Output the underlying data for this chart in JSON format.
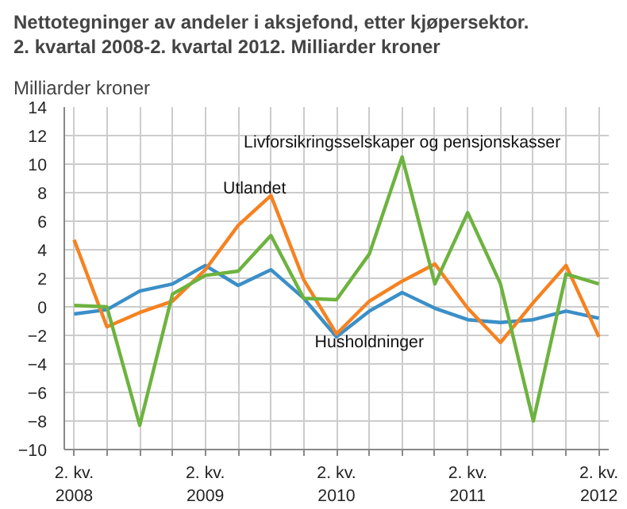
{
  "chart_data": {
    "type": "line",
    "title": "Nettotegninger av andeler i aksjefond, etter kjøpersektor.\n2. kvartal 2008-2. kvartal 2012. Milliarder kroner",
    "ylabel": "Milliarder kroner",
    "categories": [
      "2. kv. 2008",
      null,
      null,
      null,
      "2. kv. 2009",
      null,
      null,
      null,
      "2. kv. 2010",
      null,
      null,
      null,
      "2. kv. 2011",
      null,
      null,
      null,
      "2. kv. 2012"
    ],
    "series": [
      {
        "name": "Husholdninger",
        "color": "#3a8fc8",
        "values": [
          -0.5,
          -0.2,
          1.1,
          1.6,
          2.9,
          1.5,
          2.6,
          0.6,
          -2.1,
          -0.3,
          1.0,
          -0.1,
          -0.9,
          -1.1,
          -0.9,
          -0.3,
          -0.8
        ]
      },
      {
        "name": "Utlandet",
        "color": "#f58220",
        "values": [
          4.7,
          -1.4,
          -0.4,
          0.4,
          2.6,
          5.7,
          7.8,
          1.9,
          -1.9,
          0.4,
          1.8,
          3.0,
          -0.1,
          -2.5,
          0.3,
          2.9,
          -2.1
        ]
      },
      {
        "name": "Livforsikringsselskaper og pensjonskasser",
        "color": "#6db33f",
        "values": [
          0.1,
          0.0,
          -8.3,
          0.9,
          2.2,
          2.5,
          5.0,
          0.6,
          0.5,
          3.7,
          10.5,
          1.6,
          6.6,
          1.6,
          -8.0,
          2.3,
          1.6
        ]
      }
    ],
    "ylim": [
      -10,
      14
    ],
    "yticks": [
      -10,
      -8,
      -6,
      -4,
      -2,
      0,
      2,
      4,
      6,
      8,
      10,
      12,
      14
    ],
    "grid": true,
    "legend": false,
    "marker": "none",
    "line_style": "solid"
  }
}
